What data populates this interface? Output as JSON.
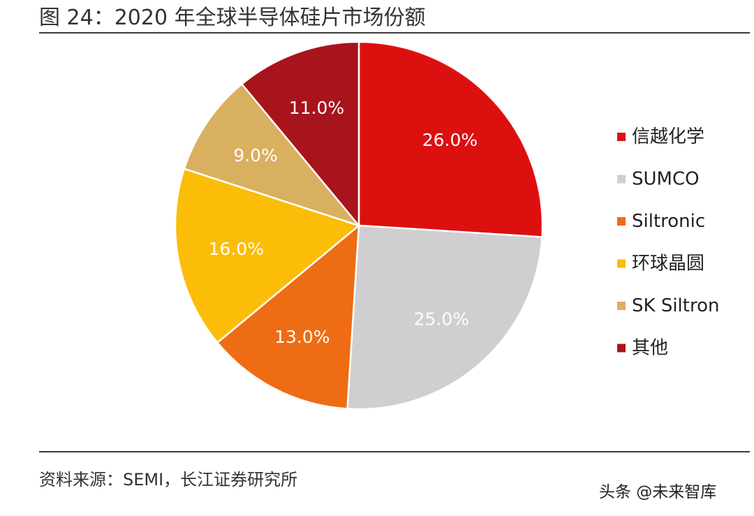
{
  "title": "图 24：2020 年全球半导体硅片市场份额",
  "source": "资料来源：SEMI，长江证券研究所",
  "watermark": "头条 @未来智库",
  "chart_data": {
    "type": "pie",
    "labels": [
      "信越化学",
      "SUMCO",
      "Siltronic",
      "环球晶圆",
      "SK Siltron",
      "其他"
    ],
    "values": [
      26.0,
      25.0,
      13.0,
      16.0,
      9.0,
      11.0
    ],
    "data_labels": [
      "26.0%",
      "25.0%",
      "13.0%",
      "16.0%",
      "9.0%",
      "11.0%"
    ],
    "colors": [
      "#dd1010",
      "#cfcfd1",
      "#ee6c14",
      "#fbbd07",
      "#d9b060",
      "#a8141b"
    ],
    "start": "12 o'clock",
    "direction": "clockwise",
    "legend_position": "right"
  }
}
